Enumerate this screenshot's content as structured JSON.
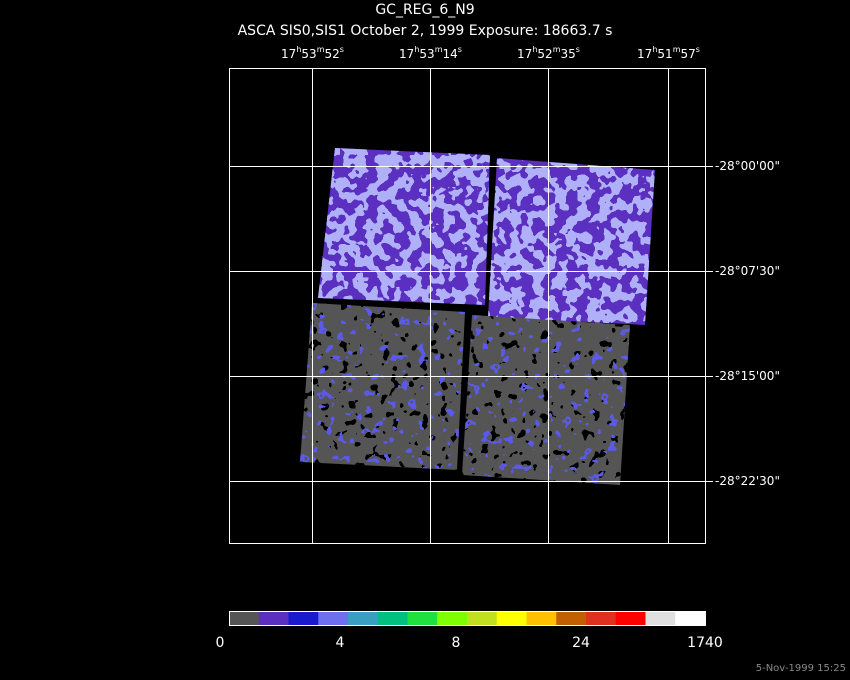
{
  "header": {
    "title": "GC_REG_6_N9",
    "subtitle": "ASCA SIS0,SIS1 October 2, 1999 Exposure: 18663.7 s"
  },
  "ra_labels": [
    [
      "17",
      "h",
      "53",
      "m",
      "52",
      "s"
    ],
    [
      "17",
      "h",
      "53",
      "m",
      "14",
      "s"
    ],
    [
      "17",
      "h",
      "52",
      "m",
      "35",
      "s"
    ],
    [
      "17",
      "h",
      "51",
      "m",
      "57",
      "s"
    ]
  ],
  "dec_labels": [
    "-28°00'00\"",
    "-28°07'30\"",
    "-28°15'00\"",
    "-28°22'30\""
  ],
  "colorbar": {
    "colors": [
      "#555555",
      "#5b2fbf",
      "#1a1acd",
      "#6e6ef0",
      "#3a9ec0",
      "#00c080",
      "#20e040",
      "#80ff00",
      "#c0e020",
      "#ffff00",
      "#ffc000",
      "#c06000",
      "#e03020",
      "#ff0000",
      "#e0e0e0",
      "#ffffff"
    ],
    "labels": [
      "0",
      "4",
      "8",
      "24",
      "1740"
    ]
  },
  "timestamp": "5-Nov-1999 15:25"
}
